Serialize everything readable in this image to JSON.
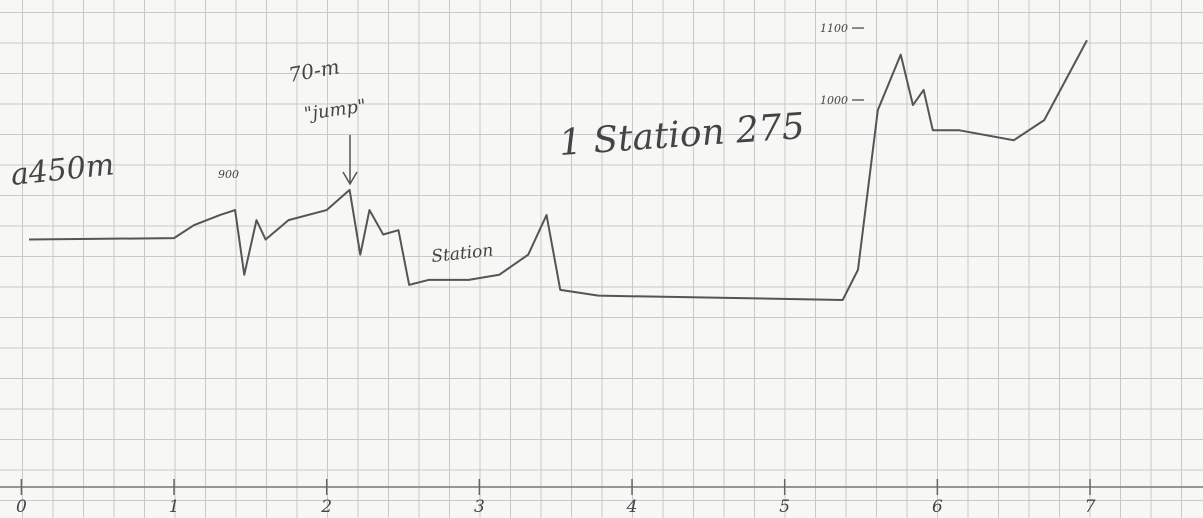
{
  "chart_data": {
    "type": "line",
    "annotations": [
      "a450m",
      "900",
      "70-m",
      "\"jump\"",
      "Station",
      "1 Station 275",
      "1100",
      "1000"
    ],
    "x": [
      0.05,
      1.0,
      1.13,
      1.3,
      1.4,
      1.46,
      1.54,
      1.6,
      1.75,
      2.0,
      2.15,
      2.22,
      2.28,
      2.37,
      2.47,
      2.54,
      2.67,
      2.93,
      3.13,
      3.32,
      3.44,
      3.53,
      3.78,
      5.38,
      5.48,
      5.61,
      5.76,
      5.84,
      5.91,
      5.97,
      6.14,
      6.5,
      6.7,
      6.98
    ],
    "series": [
      {
        "color": "#555555",
        "values": [
          806,
          808,
          826,
          840,
          847,
          757,
          833,
          806,
          833,
          847,
          875,
          785,
          847,
          813,
          819,
          743,
          750,
          750,
          757,
          785,
          840,
          736,
          728,
          722,
          764,
          986,
          1063,
          993,
          1014,
          958,
          958,
          944,
          972,
          1083
        ]
      }
    ],
    "xlim": [
      -0.14,
      7.74
    ],
    "ylim": [
      462,
      1139
    ],
    "xticks": [
      0,
      1,
      2,
      3,
      4,
      5,
      6,
      7
    ],
    "yticks": [
      1000,
      1100
    ]
  }
}
